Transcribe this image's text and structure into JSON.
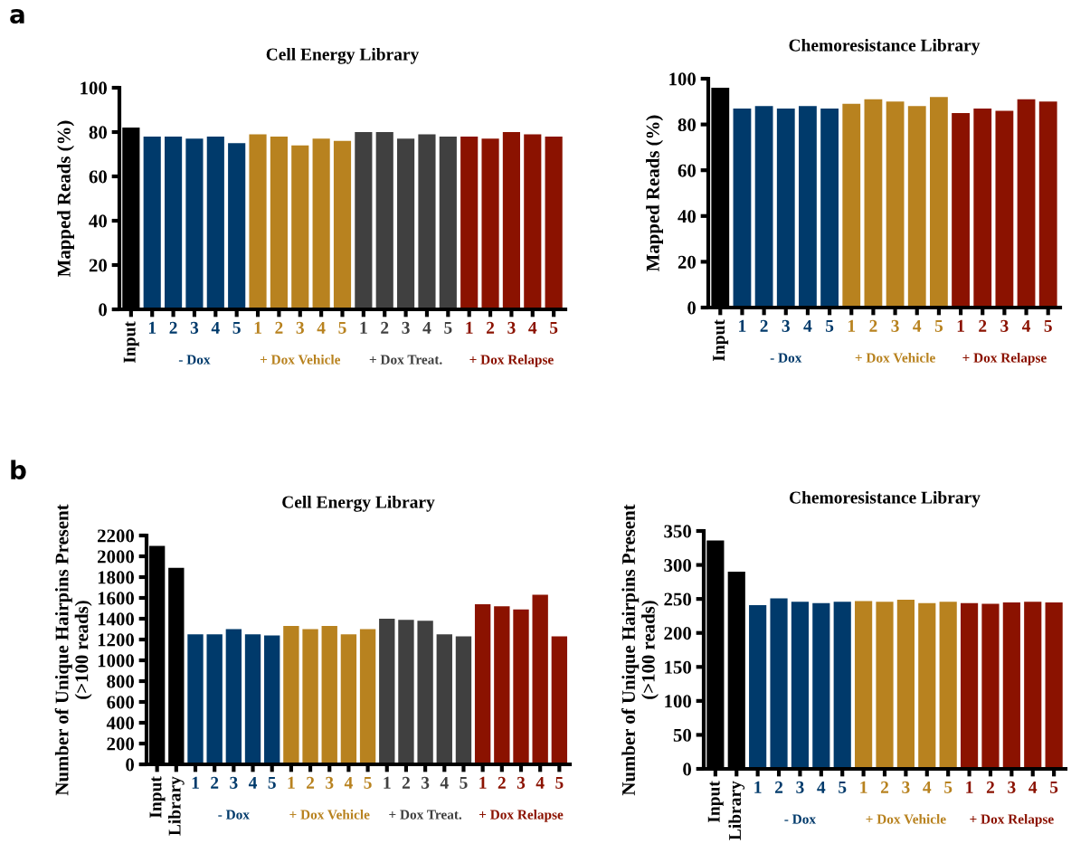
{
  "chart_data": [
    {
      "type": "bar",
      "title": "Cell Energy Library",
      "ylabel": "Mapped Reads (%)",
      "categories": [
        "Input",
        "1",
        "2",
        "3",
        "4",
        "5",
        "1",
        "2",
        "3",
        "4",
        "5",
        "1",
        "2",
        "3",
        "4",
        "5",
        "1",
        "2",
        "3",
        "4",
        "5"
      ],
      "values": [
        82,
        78,
        78,
        77,
        78,
        75,
        79,
        78,
        74,
        77,
        76,
        80,
        80,
        77,
        79,
        78,
        78,
        77,
        80,
        79,
        78
      ],
      "colors": [
        "#000000",
        "#003a6b",
        "#003a6b",
        "#003a6b",
        "#003a6b",
        "#003a6b",
        "#b8821f",
        "#b8821f",
        "#b8821f",
        "#b8821f",
        "#b8821f",
        "#404040",
        "#404040",
        "#404040",
        "#404040",
        "#404040",
        "#8b1200",
        "#8b1200",
        "#8b1200",
        "#8b1200",
        "#8b1200"
      ],
      "ylim": [
        0,
        100
      ],
      "yticks": [
        0,
        20,
        40,
        60,
        80,
        100
      ],
      "grid": false,
      "legend": false,
      "annotations": [
        "a",
        "- Dox",
        "+ Dox Vehicle",
        "+ Dox Treat.",
        "+ Dox Relapse"
      ]
    },
    {
      "type": "bar",
      "title": "Chemoresistance Library",
      "ylabel": "Mapped Reads (%)",
      "categories": [
        "Input",
        "1",
        "2",
        "3",
        "4",
        "5",
        "1",
        "2",
        "3",
        "4",
        "5",
        "1",
        "2",
        "3",
        "4",
        "5"
      ],
      "values": [
        96,
        87,
        88,
        87,
        88,
        87,
        89,
        91,
        90,
        88,
        92,
        85,
        87,
        86,
        91,
        90
      ],
      "colors": [
        "#000000",
        "#003a6b",
        "#003a6b",
        "#003a6b",
        "#003a6b",
        "#003a6b",
        "#b8821f",
        "#b8821f",
        "#b8821f",
        "#b8821f",
        "#b8821f",
        "#8b1200",
        "#8b1200",
        "#8b1200",
        "#8b1200",
        "#8b1200"
      ],
      "ylim": [
        0,
        100
      ],
      "yticks": [
        0,
        20,
        40,
        60,
        80,
        100
      ],
      "grid": false,
      "legend": false,
      "annotations": [
        "- Dox",
        "+ Dox Vehicle",
        "+ Dox Relapse"
      ]
    },
    {
      "type": "bar",
      "title": "Cell Energy Library",
      "ylabel": "Number of Unique Hairpins Present\n(>100 reads)",
      "categories": [
        "Input",
        "Library",
        "1",
        "2",
        "3",
        "4",
        "5",
        "1",
        "2",
        "3",
        "4",
        "5",
        "1",
        "2",
        "3",
        "4",
        "5",
        "1",
        "2",
        "3",
        "4",
        "5"
      ],
      "values": [
        2100,
        1890,
        1250,
        1250,
        1300,
        1250,
        1240,
        1330,
        1300,
        1330,
        1250,
        1300,
        1400,
        1390,
        1380,
        1250,
        1230,
        1540,
        1520,
        1490,
        1630,
        1230
      ],
      "colors": [
        "#000000",
        "#000000",
        "#003a6b",
        "#003a6b",
        "#003a6b",
        "#003a6b",
        "#003a6b",
        "#b8821f",
        "#b8821f",
        "#b8821f",
        "#b8821f",
        "#b8821f",
        "#404040",
        "#404040",
        "#404040",
        "#404040",
        "#404040",
        "#8b1200",
        "#8b1200",
        "#8b1200",
        "#8b1200",
        "#8b1200"
      ],
      "ylim": [
        0,
        2200
      ],
      "yticks": [
        0,
        200,
        400,
        600,
        800,
        1000,
        1200,
        1400,
        1600,
        1800,
        2000,
        2200
      ],
      "grid": false,
      "legend": false,
      "annotations": [
        "b",
        "- Dox",
        "+ Dox Vehicle",
        "+ Dox Treat.",
        "+ Dox Relapse"
      ]
    },
    {
      "type": "bar",
      "title": "Chemoresistance Library",
      "ylabel": "Number of Unique Hairpins Present\n(>100 reads)",
      "categories": [
        "Input",
        "Library",
        "1",
        "2",
        "3",
        "4",
        "5",
        "1",
        "2",
        "3",
        "4",
        "5",
        "1",
        "2",
        "3",
        "4",
        "5"
      ],
      "values": [
        336,
        290,
        241,
        251,
        246,
        244,
        246,
        247,
        246,
        249,
        244,
        246,
        244,
        243,
        245,
        246,
        245
      ],
      "colors": [
        "#000000",
        "#000000",
        "#003a6b",
        "#003a6b",
        "#003a6b",
        "#003a6b",
        "#003a6b",
        "#b8821f",
        "#b8821f",
        "#b8821f",
        "#b8821f",
        "#b8821f",
        "#8b1200",
        "#8b1200",
        "#8b1200",
        "#8b1200",
        "#8b1200"
      ],
      "ylim": [
        0,
        350
      ],
      "yticks": [
        0,
        50,
        100,
        150,
        200,
        250,
        300,
        350
      ],
      "grid": false,
      "legend": false,
      "annotations": [
        "- Dox",
        "+ Dox Vehicle",
        "+ Dox Relapse"
      ]
    }
  ]
}
